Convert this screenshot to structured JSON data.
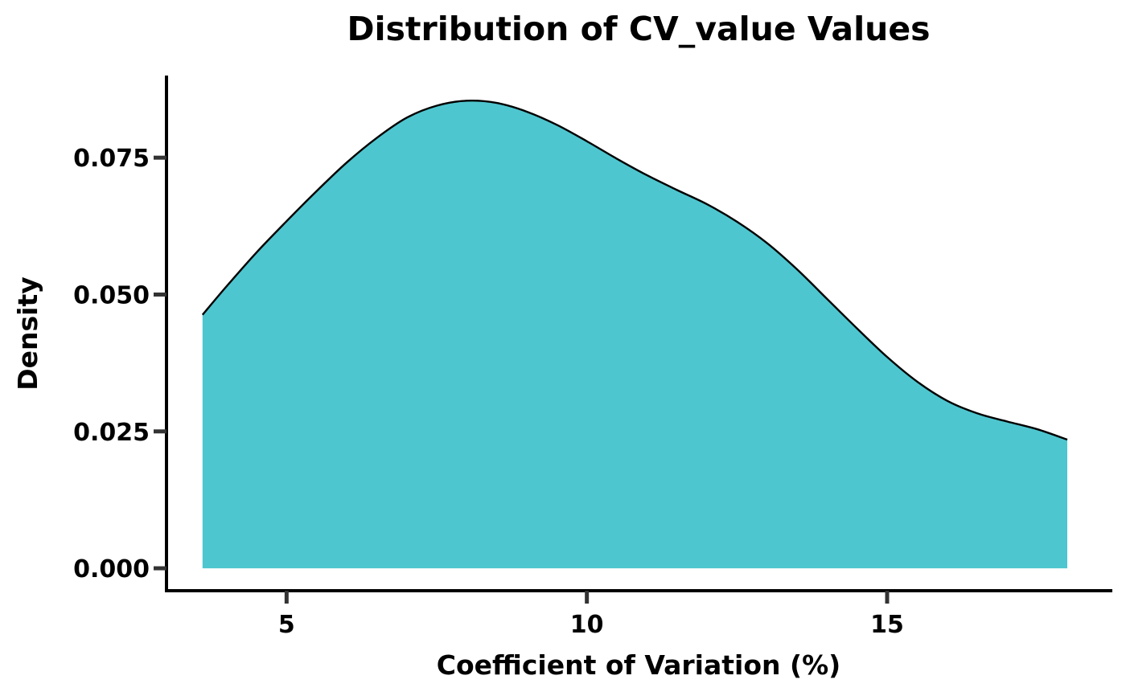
{
  "chart_data": {
    "type": "area",
    "title": "Distribution of CV_value Values",
    "xlabel": "Coefficient of Variation (%)",
    "ylabel": "Density",
    "xlim": [
      3.0,
      18.75
    ],
    "ylim": [
      -0.0041,
      0.09
    ],
    "xticks": [
      5,
      10,
      15
    ],
    "xtick_labels": [
      "5",
      "10",
      "15"
    ],
    "yticks": [
      0.0,
      0.025,
      0.05,
      0.075
    ],
    "ytick_labels": [
      "0.000",
      "0.025",
      "0.050",
      "0.075"
    ],
    "grid": false,
    "legend": false,
    "fill_color": "#4ec6cf",
    "line_color": "#000000",
    "series": [
      {
        "x": [
          3.6,
          4.0,
          4.5,
          5.0,
          5.5,
          6.0,
          6.5,
          7.0,
          7.5,
          8.0,
          8.5,
          9.0,
          9.5,
          10.0,
          10.5,
          11.0,
          11.5,
          12.0,
          12.5,
          13.0,
          13.5,
          14.0,
          14.5,
          15.0,
          15.5,
          16.0,
          16.5,
          17.0,
          17.5,
          18.0
        ],
        "y": [
          0.0463,
          0.0515,
          0.0577,
          0.0634,
          0.0689,
          0.0741,
          0.0786,
          0.0823,
          0.0845,
          0.0854,
          0.085,
          0.0834,
          0.081,
          0.078,
          0.0748,
          0.0718,
          0.0691,
          0.0665,
          0.0633,
          0.0594,
          0.0546,
          0.0492,
          0.0438,
          0.0386,
          0.0341,
          0.0306,
          0.0283,
          0.0268,
          0.0254,
          0.0235
        ]
      }
    ]
  }
}
